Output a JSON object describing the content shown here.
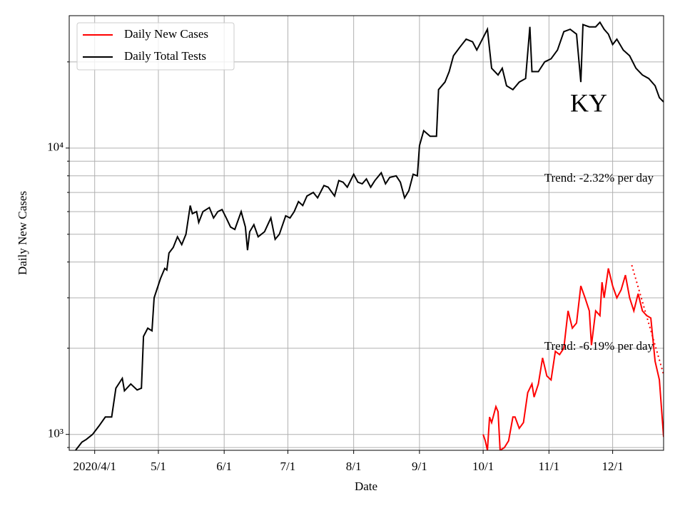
{
  "chart_data": {
    "type": "line",
    "title": "KY",
    "x_label": "Date",
    "y_label": "Daily New Cases",
    "log_y": true,
    "grid": true,
    "legend": "upper left",
    "xlim": [
      "2020-03-20",
      "2020-12-25"
    ],
    "xticks": [
      {
        "value": "2020-04-01",
        "label": "2020/4/1"
      },
      {
        "value": "2020-05-01",
        "label": "5/1"
      },
      {
        "value": "2020-06-01",
        "label": "6/1"
      },
      {
        "value": "2020-07-01",
        "label": "7/1"
      },
      {
        "value": "2020-08-01",
        "label": "8/1"
      },
      {
        "value": "2020-09-01",
        "label": "9/1"
      },
      {
        "value": "2020-10-01",
        "label": "10/1"
      },
      {
        "value": "2020-11-01",
        "label": "11/1"
      },
      {
        "value": "2020-12-01",
        "label": "12/1"
      }
    ],
    "ylim": [
      880,
      29000
    ],
    "yticks": [
      {
        "value": 1000,
        "label": "10³"
      },
      {
        "value": 10000,
        "label": "10⁴"
      }
    ],
    "yminorticks": [
      900,
      2000,
      3000,
      4000,
      5000,
      6000,
      7000,
      8000,
      9000,
      20000
    ],
    "annotations": [
      "Trend: -2.32% per day",
      "Trend: -6.19% per day"
    ],
    "series": [
      {
        "name": "Daily New Cases",
        "color": "#ff0000",
        "x": [
          "2020-10-01",
          "2020-10-02",
          "2020-10-03",
          "2020-10-04",
          "2020-10-05",
          "2020-10-07",
          "2020-10-08",
          "2020-10-09",
          "2020-10-11",
          "2020-10-13",
          "2020-10-15",
          "2020-10-16",
          "2020-10-18",
          "2020-10-20",
          "2020-10-22",
          "2020-10-24",
          "2020-10-25",
          "2020-10-27",
          "2020-10-29",
          "2020-10-31",
          "2020-11-02",
          "2020-11-04",
          "2020-11-06",
          "2020-11-08",
          "2020-11-10",
          "2020-11-12",
          "2020-11-14",
          "2020-11-16",
          "2020-11-18",
          "2020-11-20",
          "2020-11-21",
          "2020-11-23",
          "2020-11-25",
          "2020-11-26",
          "2020-11-27",
          "2020-11-29",
          "2020-12-01",
          "2020-12-03",
          "2020-12-05",
          "2020-12-07",
          "2020-12-09",
          "2020-12-11",
          "2020-12-13",
          "2020-12-15",
          "2020-12-17",
          "2020-12-19",
          "2020-12-21",
          "2020-12-23",
          "2020-12-25"
        ],
        "values": [
          1000,
          950,
          880,
          1150,
          1100,
          1250,
          1200,
          880,
          900,
          950,
          1150,
          1150,
          1050,
          1100,
          1400,
          1500,
          1350,
          1500,
          1850,
          1600,
          1550,
          1950,
          1900,
          2000,
          2700,
          2350,
          2450,
          3300,
          3000,
          2700,
          2050,
          2700,
          2600,
          3400,
          3000,
          3800,
          3300,
          3000,
          3200,
          3600,
          3000,
          2700,
          3100,
          2700,
          2600,
          2550,
          1800,
          1550,
          980
        ]
      },
      {
        "name": "Daily Total Tests",
        "color": "#000000",
        "x": [
          "2020-03-23",
          "2020-03-26",
          "2020-03-28",
          "2020-03-31",
          "2020-04-03",
          "2020-04-06",
          "2020-04-09",
          "2020-04-11",
          "2020-04-14",
          "2020-04-15",
          "2020-04-18",
          "2020-04-21",
          "2020-04-23",
          "2020-04-24",
          "2020-04-26",
          "2020-04-28",
          "2020-04-29",
          "2020-05-02",
          "2020-05-04",
          "2020-05-05",
          "2020-05-06",
          "2020-05-08",
          "2020-05-10",
          "2020-05-12",
          "2020-05-14",
          "2020-05-16",
          "2020-05-17",
          "2020-05-19",
          "2020-05-20",
          "2020-05-22",
          "2020-05-25",
          "2020-05-27",
          "2020-05-29",
          "2020-05-31",
          "2020-06-02",
          "2020-06-04",
          "2020-06-06",
          "2020-06-09",
          "2020-06-11",
          "2020-06-12",
          "2020-06-13",
          "2020-06-15",
          "2020-06-17",
          "2020-06-20",
          "2020-06-23",
          "2020-06-25",
          "2020-06-27",
          "2020-06-30",
          "2020-07-02",
          "2020-07-04",
          "2020-07-06",
          "2020-07-08",
          "2020-07-10",
          "2020-07-13",
          "2020-07-15",
          "2020-07-18",
          "2020-07-20",
          "2020-07-23",
          "2020-07-25",
          "2020-07-27",
          "2020-07-29",
          "2020-08-01",
          "2020-08-03",
          "2020-08-05",
          "2020-08-07",
          "2020-08-09",
          "2020-08-11",
          "2020-08-14",
          "2020-08-16",
          "2020-08-18",
          "2020-08-21",
          "2020-08-23",
          "2020-08-25",
          "2020-08-27",
          "2020-08-29",
          "2020-08-31",
          "2020-09-01",
          "2020-09-03",
          "2020-09-06",
          "2020-09-09",
          "2020-09-10",
          "2020-09-13",
          "2020-09-15",
          "2020-09-17",
          "2020-09-20",
          "2020-09-23",
          "2020-09-26",
          "2020-09-28",
          "2020-09-30",
          "2020-10-03",
          "2020-10-05",
          "2020-10-08",
          "2020-10-10",
          "2020-10-12",
          "2020-10-15",
          "2020-10-18",
          "2020-10-21",
          "2020-10-23",
          "2020-10-24",
          "2020-10-27",
          "2020-10-30",
          "2020-11-02",
          "2020-11-05",
          "2020-11-08",
          "2020-11-11",
          "2020-11-14",
          "2020-11-16",
          "2020-11-17",
          "2020-11-20",
          "2020-11-23",
          "2020-11-25",
          "2020-11-27",
          "2020-11-29",
          "2020-12-01",
          "2020-12-03",
          "2020-12-06",
          "2020-12-09",
          "2020-12-12",
          "2020-12-15",
          "2020-12-18",
          "2020-12-21",
          "2020-12-23",
          "2020-12-25"
        ],
        "values": [
          880,
          940,
          960,
          1000,
          1070,
          1150,
          1150,
          1450,
          1570,
          1420,
          1500,
          1430,
          1450,
          2200,
          2350,
          2300,
          3000,
          3500,
          3800,
          3750,
          4300,
          4500,
          4900,
          4600,
          5000,
          6300,
          5900,
          6000,
          5500,
          6000,
          6200,
          5700,
          6000,
          6100,
          5700,
          5300,
          5200,
          6000,
          5300,
          4400,
          5100,
          5400,
          4900,
          5100,
          5700,
          4800,
          5000,
          5800,
          5700,
          6000,
          6500,
          6300,
          6800,
          7000,
          6700,
          7400,
          7300,
          6800,
          7700,
          7600,
          7300,
          8100,
          7600,
          7500,
          7800,
          7300,
          7700,
          8200,
          7500,
          7900,
          8000,
          7600,
          6700,
          7100,
          8100,
          8000,
          10200,
          11500,
          11000,
          11000,
          16000,
          17000,
          18500,
          21000,
          22500,
          24000,
          23500,
          22000,
          23500,
          26000,
          19000,
          18000,
          19000,
          16500,
          16000,
          17000,
          17500,
          26500,
          18500,
          18500,
          20000,
          20500,
          22000,
          25500,
          26000,
          25000,
          17000,
          27000,
          26500,
          26500,
          27500,
          26000,
          25000,
          23000,
          24000,
          22000,
          21000,
          19000,
          18000,
          17500,
          16500,
          15000,
          14500
        ]
      }
    ],
    "trend_lines": [
      {
        "color": "#ff0000",
        "x": [
          "2020-12-10",
          "2020-12-25"
        ],
        "values": [
          3900,
          1620
        ]
      }
    ]
  }
}
